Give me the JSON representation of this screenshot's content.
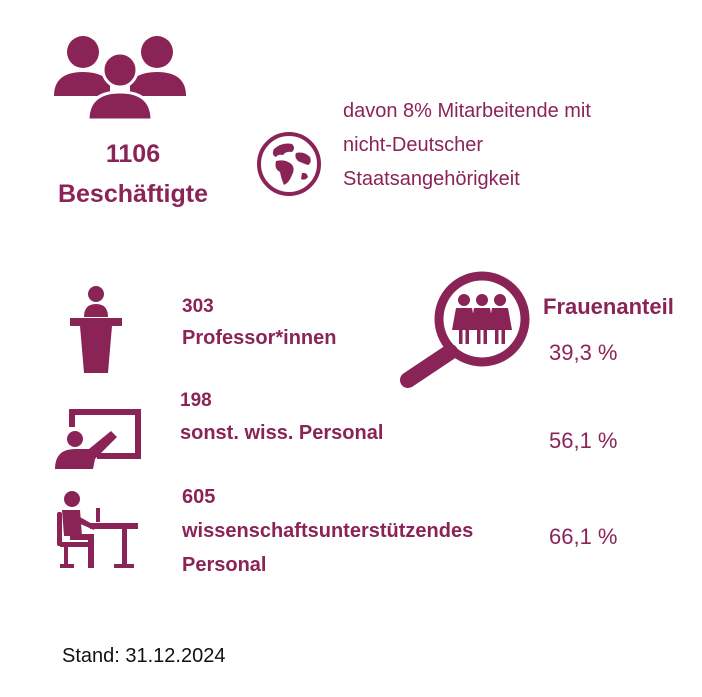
{
  "colors": {
    "accent": "#8a2457",
    "text": "#111111",
    "background": "#ffffff"
  },
  "staff": {
    "total": "1106",
    "total_label": "Beschäftigte",
    "icon": "people-group-icon"
  },
  "international": {
    "icon": "globe-icon",
    "line1": "davon 8% Mitarbeitende mit",
    "line2": "nicht-Deutscher",
    "line3": "Staatsangehörigkeit"
  },
  "women_share": {
    "heading": "Frauenanteil",
    "icon": "magnifier-women-icon"
  },
  "groups": [
    {
      "icon": "lectern-icon",
      "count": "303",
      "label": "Professor*innen",
      "women_share": "39,3 %"
    },
    {
      "icon": "presentation-board-icon",
      "count": "198",
      "label": "sonst. wiss. Personal",
      "women_share": "56,1 %"
    },
    {
      "icon": "office-worker-icon",
      "count": "605",
      "label_line1": "wissenschaftsunterstützendes",
      "label_line2": "Personal",
      "women_share": "66,1 %"
    }
  ],
  "footer": {
    "stand": "Stand: 31.12.2024"
  }
}
